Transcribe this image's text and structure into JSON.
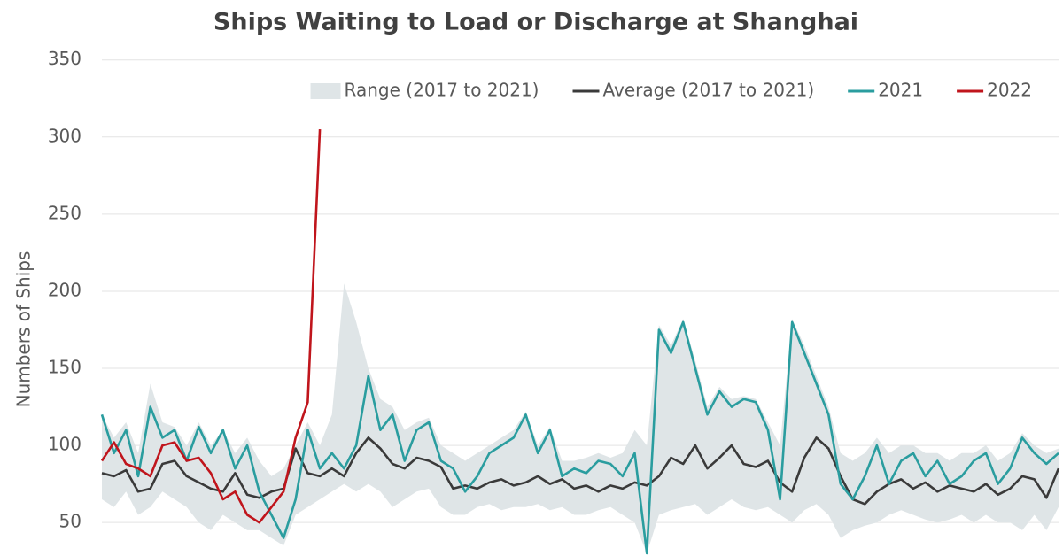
{
  "chart_data": {
    "type": "line",
    "title": "Ships Waiting to Load or Discharge at Shanghai",
    "y_label": "Numbers of Ships",
    "ylim": [
      30,
      355
    ],
    "yticks": [
      50,
      100,
      150,
      200,
      250,
      300,
      350
    ],
    "grid": true,
    "legend": "top-right",
    "series": [
      {
        "name": "Range (2017 to 2021)",
        "color": "#dfe5e7",
        "high": [
          120,
          105,
          115,
          95,
          140,
          115,
          112,
          100,
          115,
          100,
          110,
          95,
          105,
          90,
          80,
          85,
          100,
          115,
          100,
          120,
          205,
          180,
          150,
          130,
          125,
          110,
          115,
          118,
          100,
          95,
          90,
          95,
          100,
          105,
          110,
          122,
          100,
          112,
          90,
          90,
          92,
          95,
          92,
          95,
          110,
          100,
          178,
          165,
          182,
          155,
          125,
          138,
          130,
          132,
          130,
          115,
          100,
          182,
          165,
          145,
          125,
          95,
          90,
          95,
          105,
          95,
          100,
          100,
          95,
          95,
          90,
          95,
          95,
          100,
          90,
          95,
          108,
          100,
          95,
          98
        ],
        "low": [
          65,
          60,
          70,
          55,
          60,
          70,
          65,
          60,
          50,
          45,
          55,
          50,
          45,
          45,
          40,
          35,
          55,
          60,
          65,
          70,
          75,
          70,
          75,
          70,
          60,
          65,
          70,
          72,
          60,
          55,
          55,
          60,
          62,
          58,
          60,
          60,
          62,
          58,
          60,
          55,
          55,
          58,
          60,
          55,
          50,
          30,
          55,
          58,
          60,
          62,
          55,
          60,
          65,
          60,
          58,
          60,
          55,
          50,
          58,
          62,
          55,
          40,
          45,
          48,
          50,
          55,
          58,
          55,
          52,
          50,
          52,
          55,
          50,
          55,
          50,
          50,
          45,
          55,
          45,
          60
        ]
      },
      {
        "name": "Average (2017 to 2021)",
        "color": "#3a3a3a",
        "values": [
          82,
          80,
          84,
          70,
          72,
          88,
          90,
          80,
          76,
          72,
          70,
          82,
          68,
          66,
          70,
          72,
          98,
          82,
          80,
          85,
          80,
          95,
          105,
          98,
          88,
          85,
          92,
          90,
          86,
          72,
          74,
          72,
          76,
          78,
          74,
          76,
          80,
          75,
          78,
          72,
          74,
          70,
          74,
          72,
          76,
          74,
          80,
          92,
          88,
          100,
          85,
          92,
          100,
          88,
          86,
          90,
          76,
          70,
          92,
          105,
          98,
          80,
          65,
          62,
          70,
          75,
          78,
          72,
          76,
          70,
          74,
          72,
          70,
          75,
          68,
          72,
          80,
          78,
          66,
          85
        ]
      },
      {
        "name": "2021",
        "color": "#2a9d9f",
        "values": [
          120,
          95,
          110,
          80,
          125,
          105,
          110,
          90,
          112,
          95,
          110,
          85,
          100,
          70,
          55,
          40,
          65,
          110,
          85,
          95,
          85,
          100,
          145,
          110,
          120,
          90,
          110,
          115,
          90,
          85,
          70,
          80,
          95,
          100,
          105,
          120,
          95,
          110,
          80,
          85,
          82,
          90,
          88,
          80,
          95,
          30,
          175,
          160,
          180,
          150,
          120,
          135,
          125,
          130,
          128,
          110,
          65,
          180,
          160,
          140,
          120,
          75,
          65,
          80,
          100,
          75,
          90,
          95,
          80,
          90,
          75,
          80,
          90,
          95,
          75,
          85,
          105,
          95,
          88,
          95
        ]
      },
      {
        "name": "2022",
        "color": "#c0151c",
        "values": [
          90,
          102,
          88,
          85,
          80,
          100,
          102,
          90,
          92,
          82,
          65,
          70,
          55,
          50,
          60,
          70,
          105,
          128,
          305,
          null,
          null,
          null,
          null,
          null,
          null,
          null,
          null,
          null,
          null,
          null,
          null,
          null,
          null,
          null,
          null,
          null,
          null,
          null,
          null,
          null,
          null,
          null,
          null,
          null,
          null,
          null,
          null,
          null,
          null,
          null,
          null,
          null,
          null,
          null,
          null,
          null,
          null,
          null,
          null,
          null,
          null,
          null,
          null,
          null,
          null,
          null,
          null,
          null,
          null,
          null,
          null,
          null,
          null,
          null,
          null,
          null,
          null,
          null,
          null,
          null
        ]
      }
    ]
  }
}
